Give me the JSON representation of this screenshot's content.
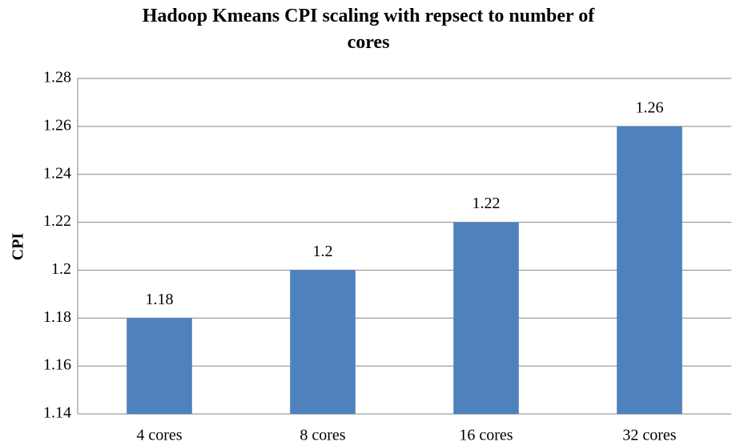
{
  "chart_data": {
    "type": "bar",
    "title": "Hadoop Kmeans CPI scaling with repsect to number of cores",
    "y_label": "CPI",
    "categories": [
      "4 cores",
      "8 cores",
      "16 cores",
      "32 cores"
    ],
    "values": [
      1.18,
      1.2,
      1.22,
      1.26
    ],
    "color": "#4f81bd",
    "ylim": [
      1.14,
      1.28
    ],
    "yticks": [
      1.14,
      1.16,
      1.18,
      1.2,
      1.22,
      1.24,
      1.26,
      1.28
    ],
    "grid": true
  }
}
